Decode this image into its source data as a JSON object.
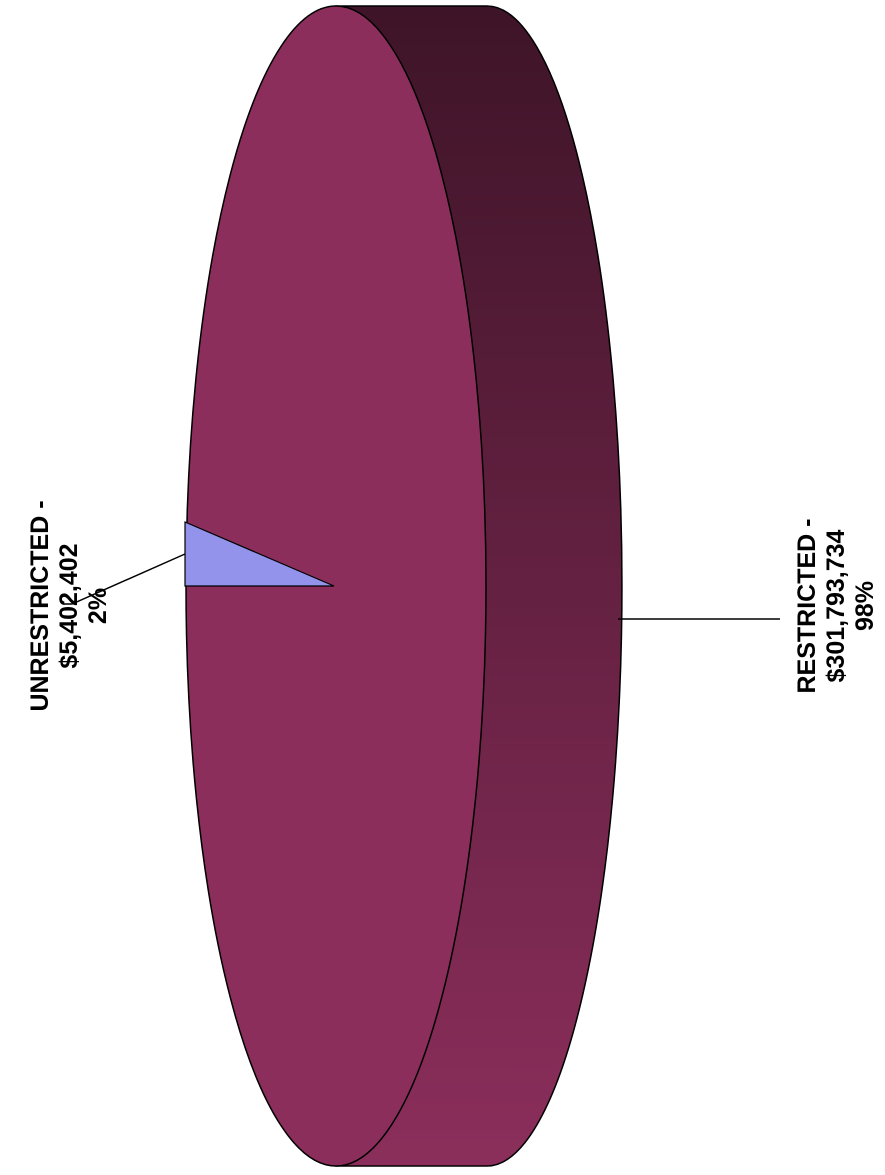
{
  "chart_data": {
    "type": "pie",
    "style": "3d-rotated",
    "slices": [
      {
        "label": "UNRESTRICTED -",
        "value_text": "$5,402,402",
        "percent_text": "2%",
        "value": 5402402,
        "percent": 2,
        "color": "#9393ec"
      },
      {
        "label": "RESTRICTED -",
        "value_text": "$301,793,734",
        "percent_text": "98%",
        "value": 301793734,
        "percent": 98,
        "color": "#8b2e5b"
      }
    ],
    "colors": {
      "face": "#8b2e5b",
      "side_dark": "#3e1428",
      "side_light": "#8b2e5b",
      "outline": "#000000"
    }
  }
}
